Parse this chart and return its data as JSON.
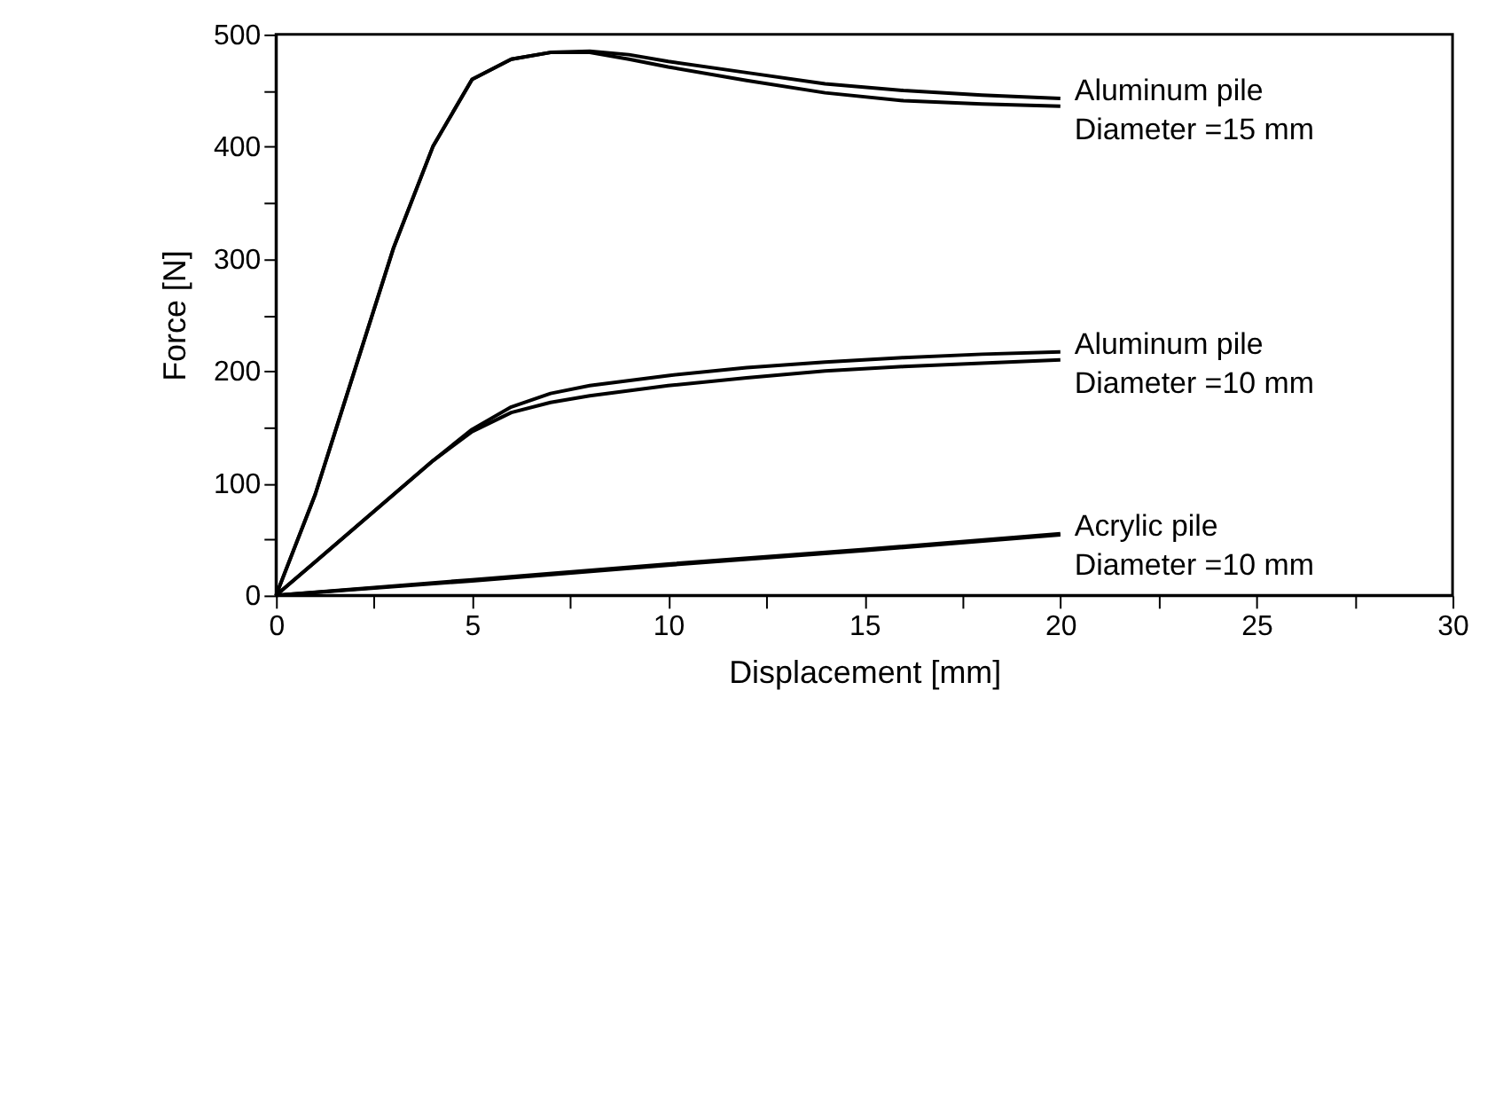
{
  "chart_data": {
    "type": "line",
    "xlabel": "Displacement [mm]",
    "ylabel": "Force [N]",
    "xlim": [
      0,
      30
    ],
    "ylim": [
      0,
      500
    ],
    "xticks": [
      0,
      {
        "value": 2.5,
        "label": null
      },
      5,
      {
        "value": 7.5,
        "label": null
      },
      10,
      {
        "value": 12.5,
        "label": null
      },
      15,
      {
        "value": 17.5,
        "label": null
      },
      20,
      {
        "value": 22.5,
        "label": null
      },
      25,
      {
        "value": 27.5,
        "label": null
      },
      30
    ],
    "yticks": [
      0,
      {
        "value": 50,
        "label": null
      },
      100,
      {
        "value": 150,
        "label": null
      },
      200,
      {
        "value": 250,
        "label": null
      },
      300,
      {
        "value": 350,
        "label": null
      },
      400,
      {
        "value": 450,
        "label": null
      },
      500
    ],
    "grid": false,
    "marker": "none",
    "line_style": "solid",
    "series": [
      {
        "color": "#000000",
        "x": [
          0,
          1,
          2,
          3,
          4,
          5,
          6,
          7,
          8,
          9,
          10,
          12,
          14,
          16,
          18,
          20
        ],
        "values": [
          0,
          90,
          200,
          310,
          400,
          460,
          478,
          484,
          485,
          482,
          476,
          466,
          456,
          450,
          446,
          443
        ]
      },
      {
        "color": "#000000",
        "x": [
          0,
          1,
          2,
          3,
          4,
          5,
          6,
          7,
          8,
          9,
          10,
          12,
          14,
          16,
          18,
          20
        ],
        "values": [
          0,
          90,
          200,
          310,
          400,
          460,
          478,
          484,
          484,
          478,
          471,
          459,
          448,
          441,
          438,
          436
        ]
      },
      {
        "color": "#000000",
        "x": [
          0,
          1,
          2,
          3,
          4,
          5,
          6,
          7,
          8,
          10,
          12,
          14,
          16,
          18,
          20
        ],
        "values": [
          0,
          30,
          60,
          90,
          120,
          148,
          168,
          180,
          187,
          196,
          203,
          208,
          212,
          215,
          217
        ]
      },
      {
        "color": "#000000",
        "x": [
          0,
          1,
          2,
          3,
          4,
          5,
          6,
          7,
          8,
          10,
          12,
          14,
          16,
          18,
          20
        ],
        "values": [
          0,
          30,
          60,
          90,
          120,
          146,
          163,
          172,
          178,
          187,
          194,
          200,
          204,
          207,
          210
        ]
      },
      {
        "color": "#000000",
        "x": [
          0,
          5,
          10,
          15,
          20
        ],
        "values": [
          0,
          14,
          28,
          41,
          55
        ]
      },
      {
        "color": "#000000",
        "x": [
          0,
          5,
          10,
          15,
          20
        ],
        "values": [
          0,
          13,
          27,
          40,
          54
        ]
      }
    ],
    "annotations": [
      "Aluminum pile\nDiameter =15 mm",
      "Aluminum pile\nDiameter =10 mm",
      "Acrylic pile\nDiameter =10 mm"
    ]
  }
}
